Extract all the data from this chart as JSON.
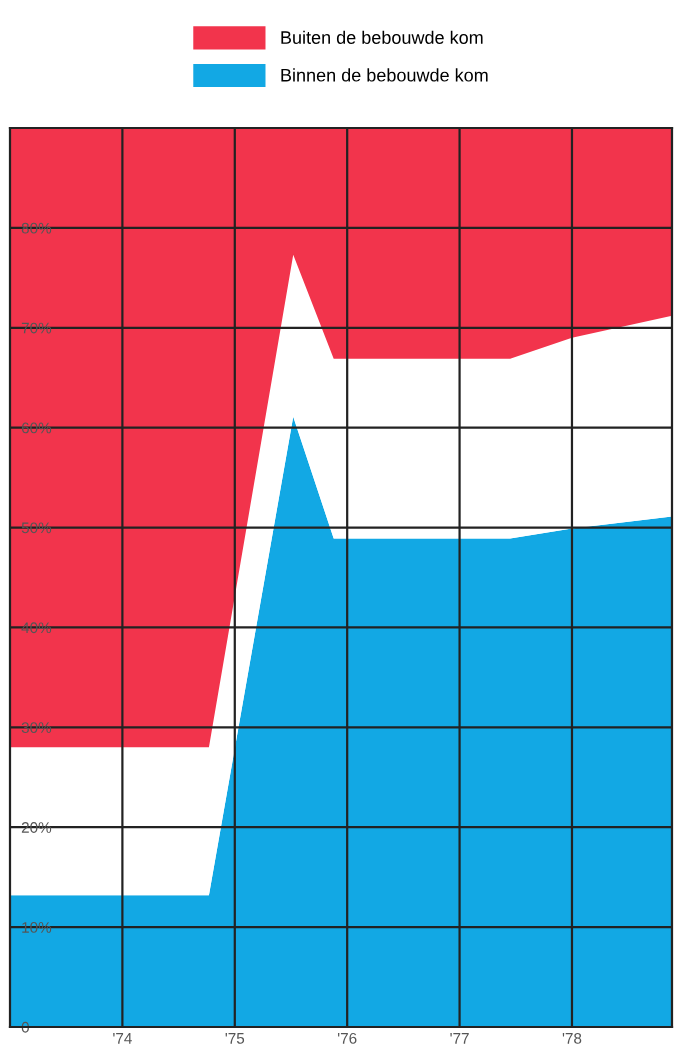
{
  "chart_data": {
    "type": "area",
    "stacked": true,
    "legend": "top",
    "grid": true,
    "x": [
      1973,
      1974.77,
      1975.52,
      1975.88,
      1977.45,
      1978.0,
      1978.89
    ],
    "xlim": [
      1973,
      1978.89
    ],
    "xticks": [
      {
        "value": 1974,
        "label": "'74"
      },
      {
        "value": 1975,
        "label": "'75"
      },
      {
        "value": 1976,
        "label": "'76"
      },
      {
        "value": 1977,
        "label": "'77"
      },
      {
        "value": 1978,
        "label": "'78"
      }
    ],
    "ylim": [
      0,
      90
    ],
    "yticks": [
      {
        "value": 0,
        "label": "0"
      },
      {
        "value": 10,
        "label": "10%"
      },
      {
        "value": 20,
        "label": "20%"
      },
      {
        "value": 30,
        "label": "30%"
      },
      {
        "value": 40,
        "label": "40%"
      },
      {
        "value": 50,
        "label": "50%"
      },
      {
        "value": 60,
        "label": "60%"
      },
      {
        "value": 70,
        "label": "70%"
      },
      {
        "value": 80,
        "label": "80%"
      }
    ],
    "series": [
      {
        "name": "Binnen de bebouwde kom",
        "color": "#12a8e4",
        "values": [
          13.2,
          13.2,
          61.1,
          48.9,
          48.9,
          49.9,
          51.1
        ]
      },
      {
        "color": "#ffffff",
        "values": [
          14.8,
          14.8,
          16.2,
          18.0,
          18.0,
          19.1,
          20.1
        ]
      },
      {
        "name": "Buiten de bebouwde kom",
        "color": "#f2344c",
        "values": [
          62,
          62,
          12.7,
          23.1,
          23.1,
          21,
          18.8
        ]
      }
    ]
  }
}
